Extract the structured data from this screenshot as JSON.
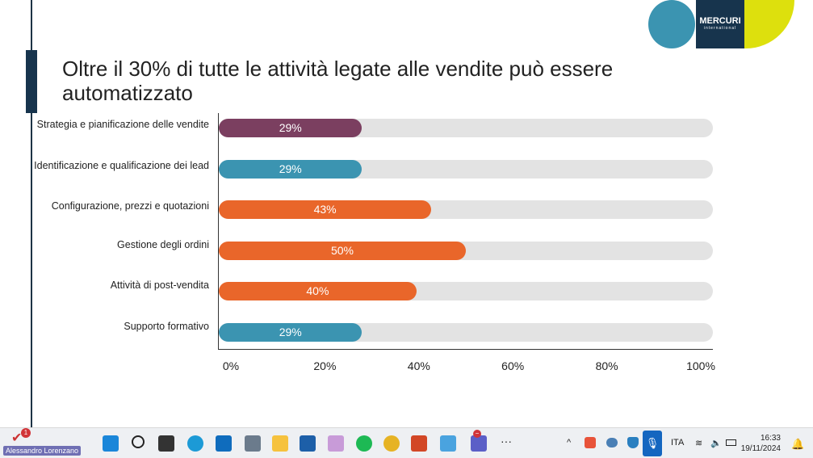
{
  "slide": {
    "title": "Oltre il 30% di tutte le attività legate alle vendite può essere automatizzato",
    "logo": {
      "text": "MERCURI",
      "subtext": "international"
    }
  },
  "chart_data": {
    "type": "bar",
    "orientation": "horizontal",
    "categories": [
      "Strategia e pianificazione delle vendite",
      "Identificazione e qualificazione dei lead",
      "Configurazione, prezzi e quotazioni",
      "Gestione degli ordini",
      "Attività di post-vendita",
      "Supporto  formativo"
    ],
    "values": [
      29,
      29,
      43,
      50,
      40,
      29
    ],
    "data_labels": [
      "29%",
      "29%",
      "43%",
      "50%",
      "40%",
      "29%"
    ],
    "bar_colors": [
      "#7b3f60",
      "#3b94b1",
      "#e9662a",
      "#e9662a",
      "#e9662a",
      "#3b94b1"
    ],
    "track_color": "#e3e3e3",
    "xlim": [
      0,
      100
    ],
    "x_tick_labels": [
      "0%",
      "20%",
      "40%",
      "60%",
      "80%",
      "100%"
    ],
    "grid": false
  },
  "taskbar": {
    "user": "Alessandro Lorenzano",
    "notification_count": "1",
    "teams_badge": "−",
    "language": "ITA",
    "time": "16:33",
    "date": "19/11/2024",
    "more": "···",
    "chevron": "^",
    "apps": [
      {
        "icon": "windows-start-icon",
        "color": "#1a86d9"
      },
      {
        "icon": "search-icon",
        "color": "#222"
      },
      {
        "icon": "task-view-icon",
        "color": "#333"
      },
      {
        "icon": "edge-icon",
        "color": "#1c9ad6"
      },
      {
        "icon": "outlook-icon",
        "color": "#0f6cbd"
      },
      {
        "icon": "calculator-icon",
        "color": "#6b7b8c"
      },
      {
        "icon": "file-explorer-icon",
        "color": "#f6c23e"
      },
      {
        "icon": "microsoft-store-icon",
        "color": "#1d5fa8"
      },
      {
        "icon": "snipping-tool-icon",
        "color": "#c89bd8"
      },
      {
        "icon": "spotify-icon",
        "color": "#1db954"
      },
      {
        "icon": "chrome-icon",
        "color": "#e6b324"
      },
      {
        "icon": "powerpoint-icon",
        "color": "#d24726"
      },
      {
        "icon": "onedrive-folder-icon",
        "color": "#4aa3df"
      },
      {
        "icon": "teams-icon",
        "color": "#5b5fc7"
      }
    ]
  }
}
